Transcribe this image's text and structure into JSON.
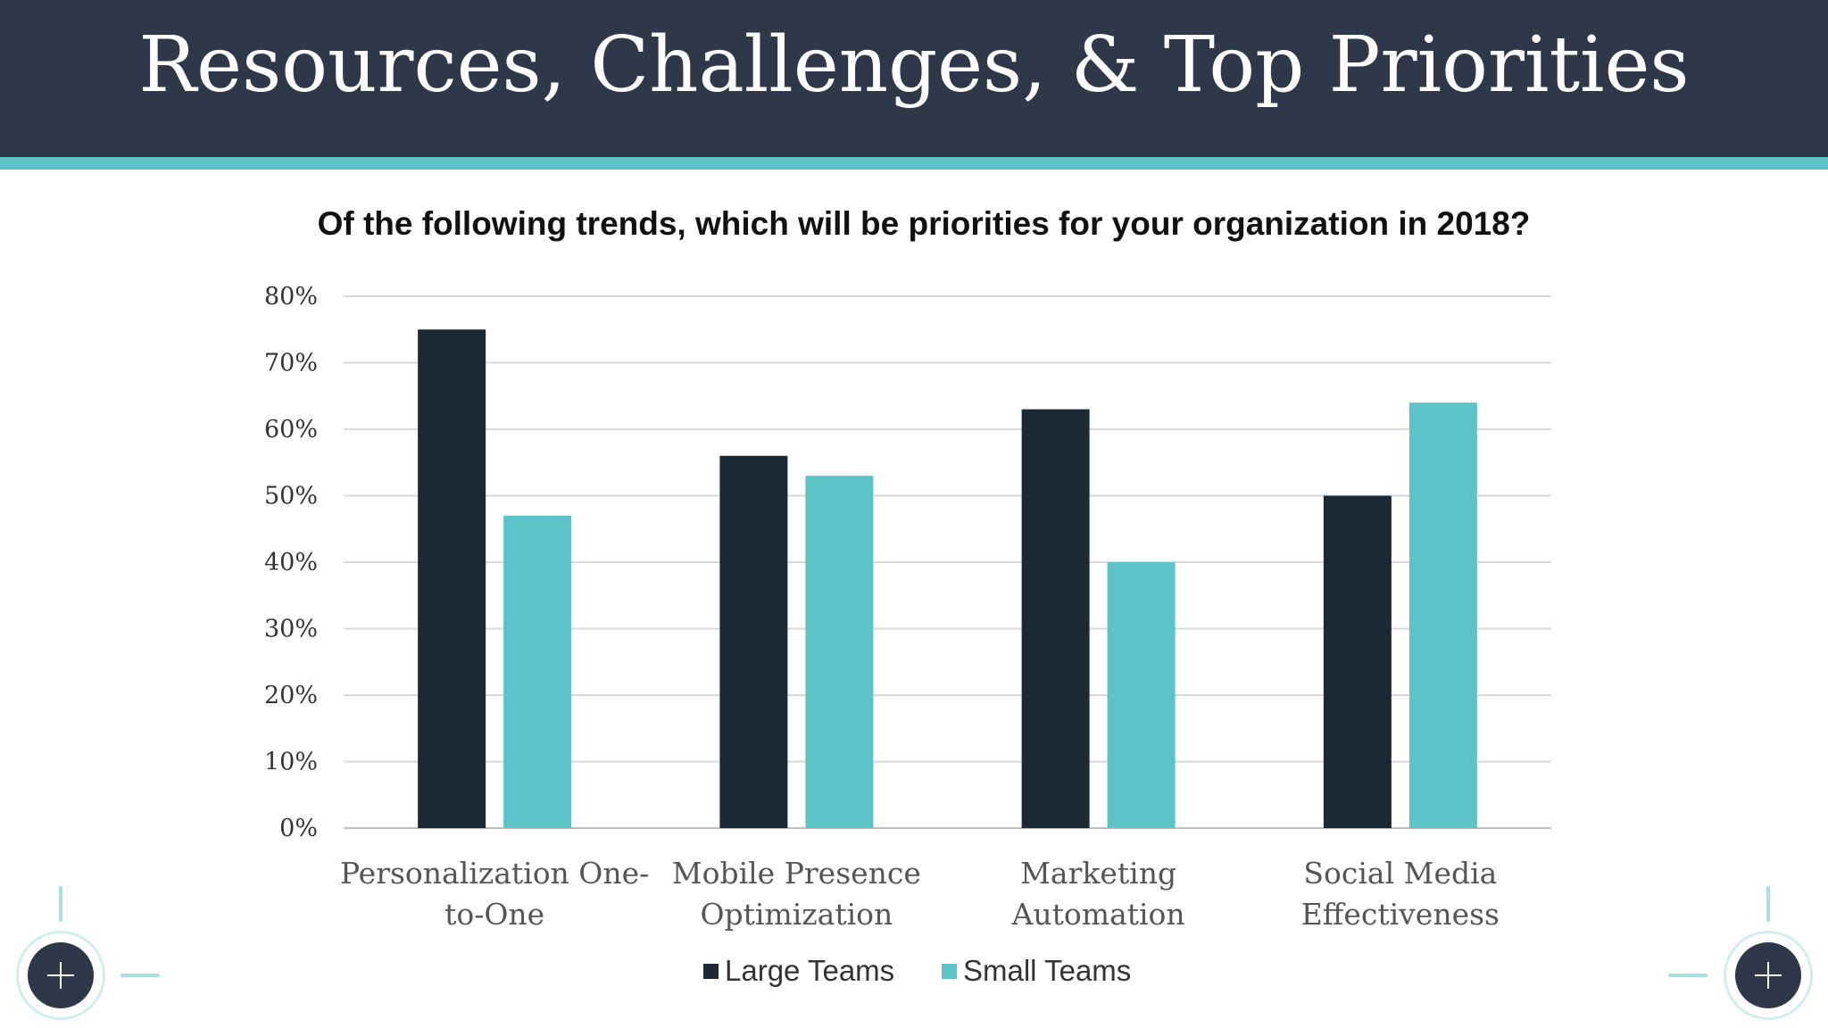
{
  "header": {
    "title": "Resources, Challenges, & Top Priorities"
  },
  "colors": {
    "header_bg": "#2e3848",
    "accent": "#5cc4c8",
    "large_teams": "#1b2935",
    "small_teams": "#5cc4c8",
    "gridline": "#d9d9d9"
  },
  "chart_data": {
    "type": "bar",
    "title": "Of the following trends, which will be priorities for your organization in 2018?",
    "categories": [
      [
        "Personalization One-",
        "to-One"
      ],
      [
        "Mobile Presence",
        "Optimization"
      ],
      [
        "Marketing",
        "Automation"
      ],
      [
        "Social Media",
        "Effectiveness"
      ]
    ],
    "series": [
      {
        "name": "Large Teams",
        "color": "#1b2935",
        "values": [
          75,
          56,
          63,
          50
        ]
      },
      {
        "name": "Small Teams",
        "color": "#5cc4c8",
        "values": [
          47,
          53,
          40,
          64
        ]
      }
    ],
    "ylim": [
      0,
      80
    ],
    "yticks": [
      0,
      10,
      20,
      30,
      40,
      50,
      60,
      70,
      80
    ],
    "ytick_labels": [
      "0%",
      "10%",
      "20%",
      "30%",
      "40%",
      "50%",
      "60%",
      "70%",
      "80%"
    ],
    "grid": true,
    "legend": "bottom-center"
  },
  "decorations": {
    "left_button_icon": "plus-icon",
    "right_button_icon": "plus-icon"
  }
}
